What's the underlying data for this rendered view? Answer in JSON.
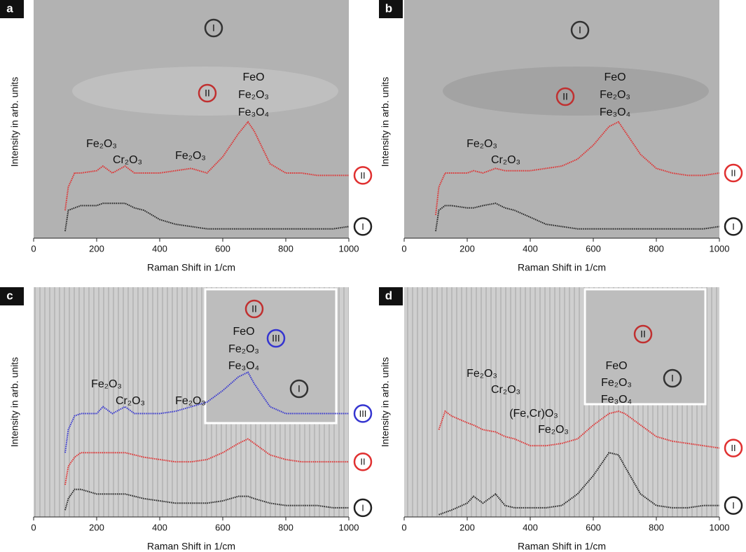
{
  "chart_data": [
    {
      "type": "line",
      "panel": "a",
      "x_label": "Raman Shift in 1/cm",
      "y_label": "Intensity in arb. units",
      "xlim": [
        0,
        1000
      ],
      "xticks": [
        0,
        200,
        400,
        600,
        800,
        1000
      ],
      "ylim": [
        0,
        100
      ],
      "x": [
        100,
        110,
        130,
        150,
        200,
        220,
        250,
        290,
        320,
        350,
        400,
        450,
        500,
        550,
        600,
        650,
        680,
        700,
        750,
        800,
        850,
        900,
        950,
        1000
      ],
      "series": [
        {
          "name": "II",
          "color": "#e03030",
          "values": [
            12,
            22,
            28,
            28,
            29,
            31,
            28,
            31,
            28,
            28,
            28,
            29,
            30,
            28,
            35,
            45,
            50,
            46,
            32,
            28,
            28,
            27,
            27,
            27
          ]
        },
        {
          "name": "I",
          "color": "#222222",
          "values": [
            3,
            12,
            13,
            14,
            14,
            15,
            15,
            15,
            13,
            12,
            8,
            6,
            5,
            4,
            4,
            4,
            4,
            4,
            4,
            4,
            4,
            4,
            4,
            5
          ]
        }
      ],
      "annotations": [
        "I",
        "II",
        "FeO",
        "Fe₂O₃",
        "Fe₃O₄",
        "Fe₂O₃",
        "Cr₂O₃",
        "Fe₂O₃"
      ]
    },
    {
      "type": "line",
      "panel": "b",
      "x_label": "Raman Shift in 1/cm",
      "y_label": "Intensity in arb. units",
      "xlim": [
        0,
        1000
      ],
      "xticks": [
        0,
        200,
        400,
        600,
        800,
        1000
      ],
      "ylim": [
        0,
        100
      ],
      "x": [
        100,
        110,
        130,
        150,
        200,
        220,
        250,
        290,
        320,
        350,
        400,
        450,
        500,
        550,
        600,
        650,
        680,
        700,
        750,
        800,
        850,
        900,
        950,
        1000
      ],
      "series": [
        {
          "name": "II",
          "color": "#e03030",
          "values": [
            10,
            22,
            28,
            28,
            28,
            29,
            28,
            30,
            29,
            29,
            29,
            30,
            31,
            34,
            40,
            48,
            50,
            46,
            36,
            30,
            28,
            27,
            27,
            28
          ]
        },
        {
          "name": "I",
          "color": "#222222",
          "values": [
            3,
            12,
            14,
            14,
            13,
            13,
            14,
            15,
            13,
            12,
            9,
            6,
            5,
            4,
            4,
            4,
            4,
            4,
            4,
            4,
            4,
            4,
            4,
            5
          ]
        }
      ],
      "annotations": [
        "I",
        "II",
        "FeO",
        "Fe₂O₃",
        "Fe₃O₄",
        "Fe₂O₃",
        "Cr₂O₃"
      ]
    },
    {
      "type": "line",
      "panel": "c",
      "x_label": "Raman Shift in 1/cm",
      "y_label": "Intensity in arb. units",
      "xlim": [
        0,
        1000
      ],
      "xticks": [
        0,
        200,
        400,
        600,
        800,
        1000
      ],
      "ylim": [
        0,
        100
      ],
      "x": [
        100,
        110,
        130,
        150,
        200,
        220,
        250,
        290,
        320,
        350,
        400,
        450,
        500,
        550,
        600,
        650,
        680,
        700,
        750,
        800,
        850,
        900,
        950,
        1000
      ],
      "series": [
        {
          "name": "III",
          "color": "#3535d0",
          "values": [
            28,
            38,
            44,
            45,
            45,
            48,
            45,
            48,
            45,
            45,
            45,
            46,
            48,
            50,
            55,
            61,
            63,
            58,
            48,
            45,
            45,
            45,
            45,
            45
          ]
        },
        {
          "name": "II",
          "color": "#e03030",
          "values": [
            14,
            22,
            26,
            28,
            28,
            28,
            28,
            28,
            27,
            26,
            25,
            24,
            24,
            25,
            28,
            32,
            34,
            32,
            27,
            25,
            24,
            24,
            24,
            24
          ]
        },
        {
          "name": "I",
          "color": "#222222",
          "values": [
            3,
            8,
            12,
            12,
            10,
            10,
            10,
            10,
            9,
            8,
            7,
            6,
            6,
            6,
            7,
            9,
            9,
            8,
            6,
            5,
            5,
            5,
            4,
            4
          ]
        }
      ],
      "annotations": [
        "II",
        "FeO",
        "Fe₂O₃",
        "Fe₃O₄",
        "III",
        "I",
        "Fe₂O₃",
        "Cr₂O₃",
        "Fe₂O₃"
      ]
    },
    {
      "type": "line",
      "panel": "d",
      "x_label": "Raman Shift in 1/cm",
      "y_label": "Intensity in arb. units",
      "xlim": [
        0,
        1000
      ],
      "xticks": [
        0,
        200,
        400,
        600,
        800,
        1000
      ],
      "ylim": [
        0,
        100
      ],
      "x": [
        100,
        110,
        130,
        150,
        200,
        220,
        250,
        290,
        320,
        350,
        400,
        450,
        500,
        550,
        600,
        650,
        680,
        700,
        750,
        800,
        850,
        900,
        950,
        1000
      ],
      "series": [
        {
          "name": "II",
          "color": "#e03030",
          "values": [
            null,
            38,
            46,
            44,
            41,
            40,
            38,
            37,
            35,
            34,
            31,
            31,
            32,
            34,
            40,
            45,
            46,
            45,
            40,
            35,
            33,
            32,
            31,
            30
          ]
        },
        {
          "name": "I",
          "color": "#222222",
          "values": [
            null,
            1,
            2,
            3,
            6,
            9,
            6,
            10,
            5,
            4,
            4,
            4,
            5,
            10,
            18,
            28,
            27,
            22,
            10,
            5,
            4,
            4,
            5,
            5
          ]
        }
      ],
      "annotations": [
        "II",
        "FeO",
        "Fe₂O₃",
        "Fe₃O₄",
        "I",
        "Fe₂O₃",
        "Cr₂O₃",
        "(Fe,Cr)O₃",
        "Fe₂O₃"
      ]
    }
  ]
}
